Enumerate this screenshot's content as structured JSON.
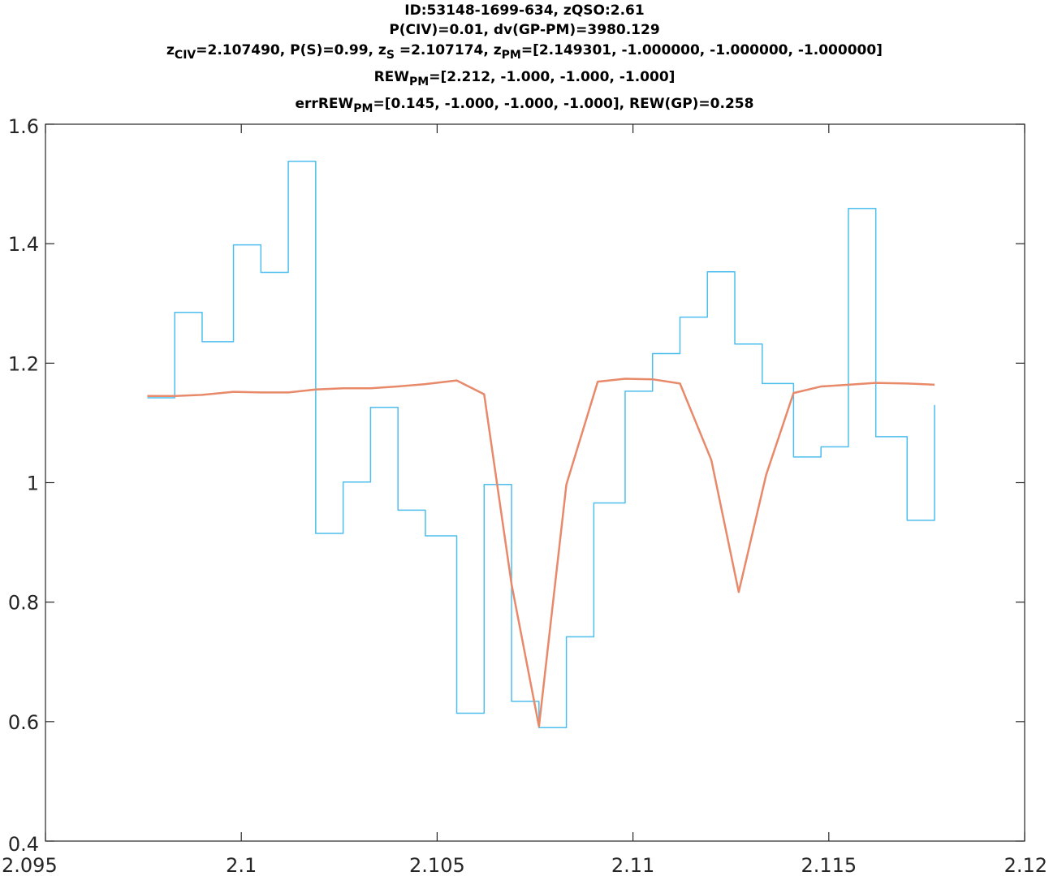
{
  "chart_data": {
    "type": "line",
    "title_lines": [
      [
        {
          "text": "ID:53148-1699-634, zQSO:2.61"
        }
      ],
      [
        {
          "text": "P(CIV)=0.01, dv(GP-PM)=3980.129"
        }
      ],
      [
        {
          "text": "z"
        },
        {
          "text": "CIV",
          "sub": true
        },
        {
          "text": "=2.107490, P(S)=0.99, z"
        },
        {
          "text": "S",
          "sub": true
        },
        {
          "text": " =2.107174, z"
        },
        {
          "text": "PM",
          "sub": true
        },
        {
          "text": "=[2.149301, -1.000000, -1.000000, -1.000000]"
        }
      ],
      [
        {
          "text": "REW"
        },
        {
          "text": "PM",
          "sub": true
        },
        {
          "text": "=[2.212, -1.000, -1.000, -1.000]"
        }
      ],
      [
        {
          "text": "errREW"
        },
        {
          "text": "PM",
          "sub": true
        },
        {
          "text": "=[0.145, -1.000, -1.000, -1.000], REW(GP)=0.258"
        }
      ]
    ],
    "xlim": [
      2.095,
      2.12
    ],
    "ylim": [
      0.4,
      1.6
    ],
    "xticks": [
      2.095,
      2.1,
      2.105,
      2.11,
      2.115,
      2.12
    ],
    "xtick_labels": [
      "2.095",
      "2.1",
      "2.105",
      "2.11",
      "2.115",
      "2.12"
    ],
    "yticks": [
      0.4,
      0.6,
      0.8,
      1.0,
      1.2,
      1.4,
      1.6
    ],
    "ytick_labels": [
      "0.4",
      "0.6",
      "0.8",
      "1",
      "1.2",
      "1.4",
      "1.6"
    ],
    "grid": false,
    "series": [
      {
        "style": "stairs",
        "color": "#4DBEEE",
        "x": [
          2.1076,
          2.1083,
          2.109,
          2.1097,
          2.1104,
          2.1111,
          2.1119,
          2.1126,
          2.1133,
          2.114,
          2.1147,
          2.1155,
          2.1162,
          2.1169,
          2.1176,
          2.1083,
          2.109,
          2.1097,
          2.1104,
          2.1111,
          2.1119,
          2.1126,
          2.1133,
          2.114,
          2.1148,
          2.1155,
          2.1162,
          2.1169,
          2.1176
        ],
        "edges": [
          2.0976,
          2.0983,
          2.099,
          2.0998,
          2.1005,
          2.1012,
          2.1019,
          2.1026,
          2.1033,
          2.104,
          2.1047,
          2.1055,
          2.1062,
          2.1069,
          2.1076,
          2.1083,
          2.109,
          2.1098,
          2.1105,
          2.1112,
          2.1119,
          2.1126,
          2.1133,
          2.1141,
          2.1148,
          2.1155,
          2.1162,
          2.117,
          2.1177
        ],
        "values": [
          1.142,
          1.285,
          1.236,
          1.398,
          1.352,
          1.538,
          0.915,
          1.001,
          1.126,
          0.954,
          0.911,
          0.614,
          0.997,
          0.634,
          0.59,
          0.742,
          0.966,
          1.153,
          1.216,
          1.277,
          1.353,
          1.232,
          1.166,
          1.043,
          1.06,
          1.459,
          1.077,
          0.937,
          1.13
        ]
      },
      {
        "style": "line",
        "color": "#E8896A",
        "x": [
          2.0976,
          2.0983,
          2.099,
          2.0998,
          2.1005,
          2.1012,
          2.1019,
          2.1026,
          2.1033,
          2.104,
          2.1047,
          2.1055,
          2.1062,
          2.1069,
          2.1076,
          2.1083,
          2.1091,
          2.1098,
          2.1105,
          2.1112,
          2.112,
          2.1127,
          2.1134,
          2.1141,
          2.1148,
          2.1155,
          2.1162,
          2.117,
          2.1177
        ],
        "values": [
          1.145,
          1.145,
          1.147,
          1.152,
          1.151,
          1.151,
          1.156,
          1.158,
          1.158,
          1.161,
          1.165,
          1.171,
          1.148,
          0.83,
          0.592,
          0.997,
          1.169,
          1.174,
          1.173,
          1.166,
          1.038,
          0.817,
          1.013,
          1.15,
          1.161,
          1.164,
          1.167,
          1.166,
          1.164
        ]
      }
    ]
  }
}
